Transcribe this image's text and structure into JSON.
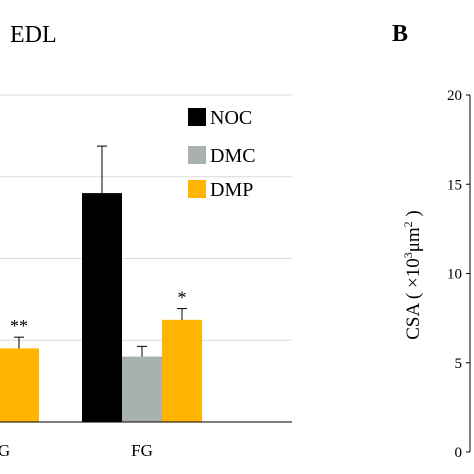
{
  "panel_left": {
    "title": "EDL",
    "legend": [
      {
        "label": "NOC",
        "color": "#000000"
      },
      {
        "label": "DMC",
        "color": "#a9b0b0"
      },
      {
        "label": "DMP",
        "color": "#ffb400"
      }
    ]
  },
  "panel_right": {
    "letter": "B",
    "ylabel_prefix": "CSA ( ×10",
    "ylabel_sup1": "3",
    "ylabel_mid": "μm",
    "ylabel_sup2": "2",
    "ylabel_suffix": " )"
  },
  "chart_data": [
    {
      "type": "bar",
      "title": "EDL",
      "categories": [
        "G",
        "FG"
      ],
      "series": [
        {
          "name": "NOC",
          "color": "#000000",
          "values": [
            null,
            11.2
          ],
          "errors": [
            null,
            2.3
          ]
        },
        {
          "name": "DMC",
          "color": "#a9b0b0",
          "values": [
            null,
            3.2
          ],
          "errors": [
            null,
            0.5
          ]
        },
        {
          "name": "DMP",
          "color": "#ffb400",
          "values": [
            3.6,
            5.0
          ],
          "errors": [
            0.55,
            0.55
          ]
        }
      ],
      "annotations": [
        {
          "category": "G",
          "series": "DMP",
          "text": "**"
        },
        {
          "category": "FG",
          "series": "DMP",
          "text": "*"
        }
      ],
      "ylim": [
        0,
        16
      ],
      "grid": true,
      "legend": "top-right"
    },
    {
      "type": "bar",
      "panel": "B",
      "ylabel": "CSA ( ×10³μm² )",
      "yticks": [
        "0",
        "5",
        "10",
        "15",
        "20"
      ],
      "ylim": [
        0,
        20
      ]
    }
  ]
}
